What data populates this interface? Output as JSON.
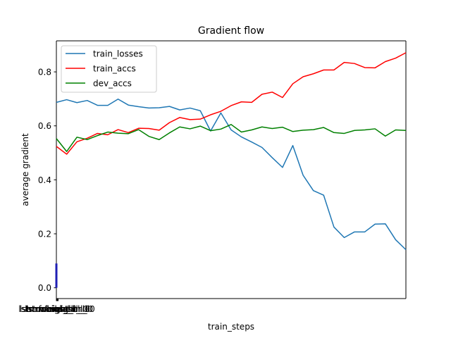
{
  "chart_data": {
    "type": "line",
    "title": "Gradient flow",
    "xlabel": "train_steps",
    "ylabel": "average gradient",
    "ylim": [
      -0.04,
      0.915
    ],
    "y_ticks": [
      0.0,
      0.2,
      0.4,
      0.6,
      0.8
    ],
    "y_tick_labels": [
      "0.0",
      "0.2",
      "0.4",
      "0.6",
      "0.8"
    ],
    "x_tick_labels": [
      "lstm.weight_ih_l0",
      "lstm.weight_hh_l0",
      "lstm.bias_ih_l0",
      "lstm.bias_hh_l0",
      "fc.weight",
      "fc.bias"
    ],
    "grid": false,
    "legend_position": "top-left",
    "series": [
      {
        "name": "train_losses",
        "color": "#1f77b4",
        "values": [
          0.687,
          0.697,
          0.686,
          0.694,
          0.676,
          0.676,
          0.699,
          0.677,
          0.671,
          0.666,
          0.667,
          0.672,
          0.659,
          0.666,
          0.656,
          0.581,
          0.648,
          0.585,
          0.559,
          0.54,
          0.52,
          0.482,
          0.446,
          0.527,
          0.417,
          0.36,
          0.343,
          0.225,
          0.186,
          0.207,
          0.207,
          0.236,
          0.237,
          0.178,
          0.141
        ]
      },
      {
        "name": "train_accs",
        "color": "#ff0000",
        "values": [
          0.524,
          0.495,
          0.541,
          0.554,
          0.572,
          0.567,
          0.586,
          0.575,
          0.591,
          0.59,
          0.584,
          0.612,
          0.631,
          0.623,
          0.625,
          0.641,
          0.654,
          0.675,
          0.689,
          0.687,
          0.717,
          0.725,
          0.705,
          0.756,
          0.782,
          0.793,
          0.807,
          0.807,
          0.835,
          0.831,
          0.816,
          0.815,
          0.838,
          0.851,
          0.871
        ]
      },
      {
        "name": "dev_accs",
        "color": "#008000",
        "values": [
          0.553,
          0.505,
          0.558,
          0.549,
          0.564,
          0.577,
          0.573,
          0.571,
          0.586,
          0.561,
          0.549,
          0.574,
          0.596,
          0.589,
          0.599,
          0.582,
          0.588,
          0.605,
          0.577,
          0.585,
          0.596,
          0.59,
          0.595,
          0.579,
          0.584,
          0.586,
          0.594,
          0.575,
          0.572,
          0.583,
          0.585,
          0.589,
          0.562,
          0.585,
          0.583
        ]
      }
    ]
  }
}
